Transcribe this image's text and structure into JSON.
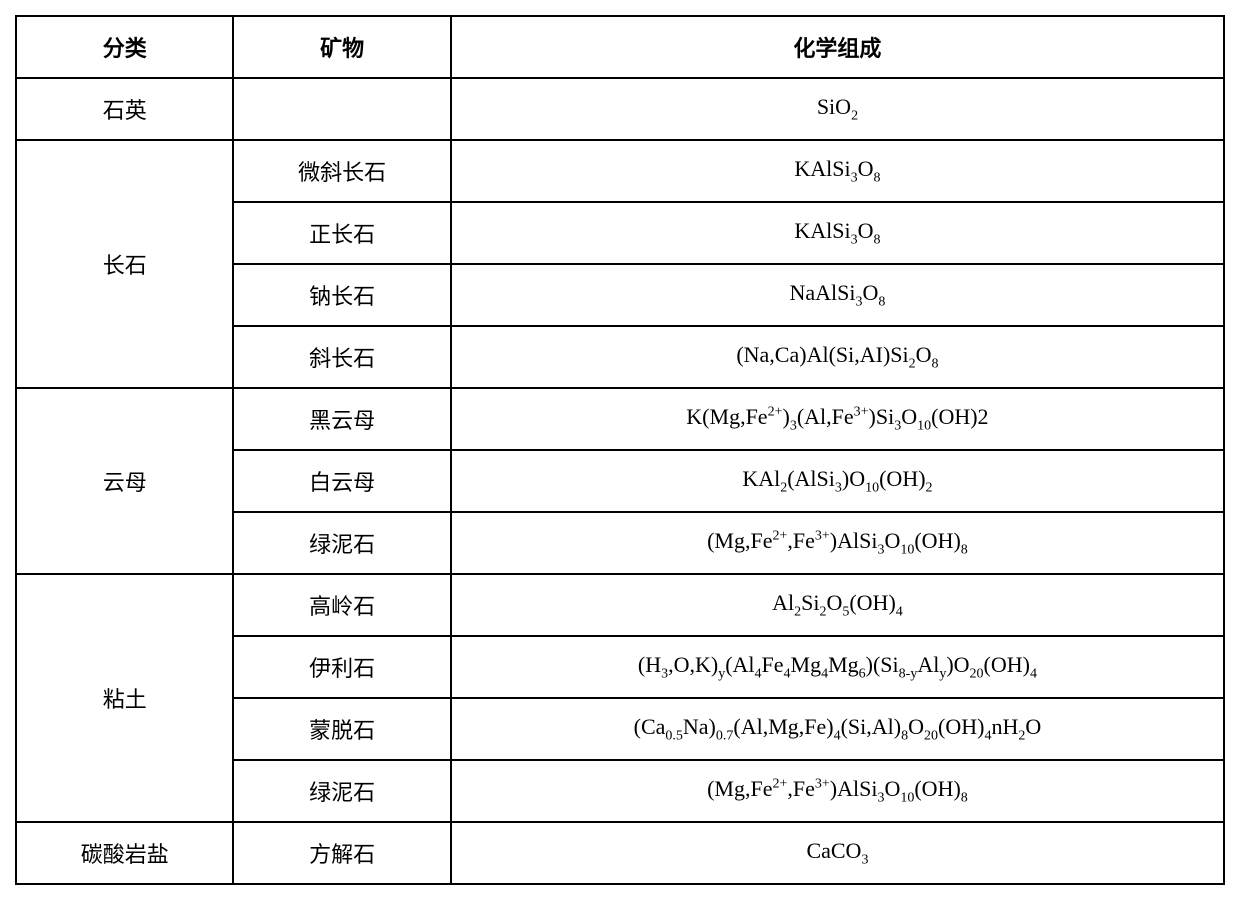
{
  "headers": {
    "category": "分类",
    "mineral": "矿物",
    "formula": "化学组成"
  },
  "rows": [
    {
      "category": "石英",
      "mineral": "",
      "formula": "SiO<sub>2</sub>",
      "rowspan": 1
    },
    {
      "category": "长石",
      "mineral": "微斜长石",
      "formula": "KAlSi<sub>3</sub>O<sub>8</sub>",
      "rowspan": 4
    },
    {
      "category": null,
      "mineral": "正长石",
      "formula": "KAlSi<sub>3</sub>O<sub>8</sub>"
    },
    {
      "category": null,
      "mineral": "钠长石",
      "formula": "NaAlSi<sub>3</sub>O<sub>8</sub>"
    },
    {
      "category": null,
      "mineral": "斜长石",
      "formula": "(Na,Ca)Al(Si,AI)Si<sub>2</sub>O<sub>8</sub>"
    },
    {
      "category": "云母",
      "mineral": "黑云母",
      "formula": "K(Mg,Fe<sup>2+</sup>)<sub>3</sub>(Al,Fe<sup>3+</sup>)Si<sub>3</sub>O<sub>10</sub>(OH)2",
      "rowspan": 3
    },
    {
      "category": null,
      "mineral": "白云母",
      "formula": "KAl<sub>2</sub>(AlSi<sub>3</sub>)O<sub>10</sub>(OH)<sub>2</sub>"
    },
    {
      "category": null,
      "mineral": "绿泥石",
      "formula": "(Mg,Fe<sup>2+</sup>,Fe<sup>3+</sup>)AlSi<sub>3</sub>O<sub>10</sub>(OH)<sub>8</sub>"
    },
    {
      "category": "粘土",
      "mineral": "高岭石",
      "formula": "Al<sub>2</sub>Si<sub>2</sub>O<sub>5</sub>(OH)<sub>4</sub>",
      "rowspan": 4
    },
    {
      "category": null,
      "mineral": "伊利石",
      "formula": "(H<sub>3</sub>,O,K)<sub>y</sub>(Al<sub>4</sub>Fe<sub>4</sub>Mg<sub>4</sub>Mg<sub>6</sub>)(Si<sub>8-y</sub>Al<sub>y</sub>)O<sub>20</sub>(OH)<sub>4</sub>"
    },
    {
      "category": null,
      "mineral": "蒙脱石",
      "formula": "(Ca<sub>0.5</sub>Na)<sub>0.7</sub>(Al,Mg,Fe)<sub>4</sub>(Si,Al)<sub>8</sub>O<sub>20</sub>(OH)<sub>4</sub>nH<sub>2</sub>O"
    },
    {
      "category": null,
      "mineral": "绿泥石",
      "formula": "(Mg,Fe<sup>2+</sup>,Fe<sup>3+</sup>)AlSi<sub>3</sub>O<sub>10</sub>(OH)<sub>8</sub>"
    },
    {
      "category": "碳酸岩盐",
      "mineral": "方解石",
      "formula": "CaCO<sub>3</sub>",
      "rowspan": 1
    }
  ]
}
